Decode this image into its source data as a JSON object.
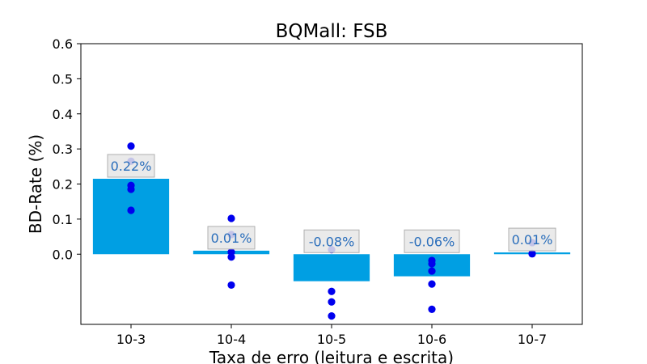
{
  "colors": {
    "bar": "#009fe3",
    "point": "#0000ee",
    "label_text": "#2a6ebb",
    "label_box_fill": "#e6e6e6",
    "label_box_stroke": "#b0b0b0"
  },
  "chart_data": {
    "type": "bar",
    "title": "BQMall: FSB",
    "xlabel": "Taxa de erro (leitura e escrita)",
    "ylabel": "BD-Rate (%)",
    "ylim": [
      -0.2,
      0.6
    ],
    "yticks": [
      0.0,
      0.1,
      0.2,
      0.3,
      0.4,
      0.5,
      0.6
    ],
    "ytick_labels": [
      "0.0",
      "0.1",
      "0.2",
      "0.3",
      "0.4",
      "0.5",
      "0.6"
    ],
    "categories": [
      "10-3",
      "10-4",
      "10-5",
      "10-6",
      "10-7"
    ],
    "values": [
      0.215,
      0.01,
      -0.077,
      -0.063,
      0.005
    ],
    "bar_labels": [
      "0.22%",
      "0.01%",
      "-0.08%",
      "-0.06%",
      "0.01%"
    ],
    "points": [
      [
        0.308,
        0.265,
        0.196,
        0.185,
        0.125
      ],
      [
        0.102,
        0.056,
        0.006,
        -0.008,
        -0.088
      ],
      [
        0.013,
        -0.106,
        -0.136,
        -0.176
      ],
      [
        -0.018,
        -0.027,
        -0.048,
        -0.085,
        -0.157
      ],
      [
        0.033,
        0.002,
        0.001
      ]
    ],
    "grid": false,
    "legend": "none"
  }
}
